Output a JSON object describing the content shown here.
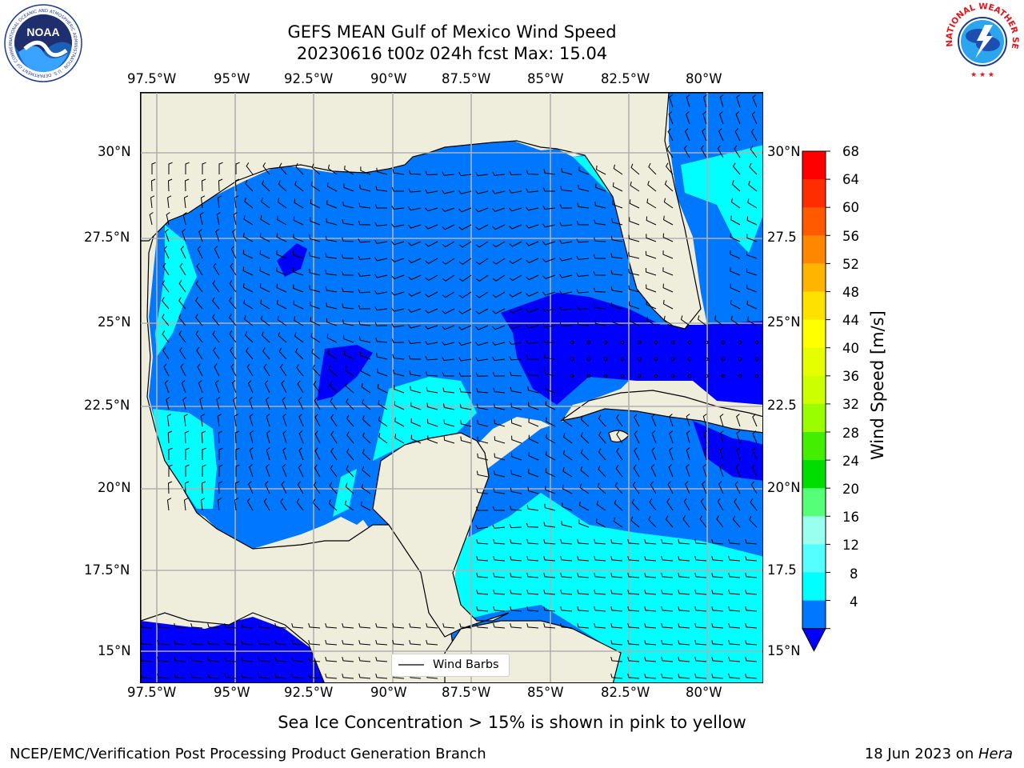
{
  "header": {
    "title_line1": "GEFS MEAN Gulf of Mexico Wind Speed",
    "title_line2": "20230616 t00z 024h fcst   Max: 15.04"
  },
  "logos": {
    "noaa_text": "NOAA",
    "noaa_ring_text": "NATIONAL OCEANIC AND ATMOSPHERIC ADMINISTRATION · U.S. DEPARTMENT OF COMMERCE",
    "nws_ring_text": "NATIONAL WEATHER SERVICE"
  },
  "axes": {
    "lon_labels": [
      "97.5°W",
      "95°W",
      "92.5°W",
      "90°W",
      "87.5°W",
      "85°W",
      "82.5°W",
      "80°W"
    ],
    "lat_labels_left": [
      "30°N",
      "27.5°N",
      "25°N",
      "22.5°N",
      "20°N",
      "17.5°N",
      "15°N"
    ],
    "lat_labels_right": [
      "30°N",
      "27.5",
      "25°N",
      "22.5",
      "20°N",
      "17.5",
      "15°N"
    ]
  },
  "colorbar": {
    "title": "Wind Speed [m/s]",
    "levels": [
      "68",
      "64",
      "60",
      "56",
      "52",
      "48",
      "44",
      "40",
      "36",
      "32",
      "28",
      "24",
      "20",
      "16",
      "12",
      "8",
      "4"
    ],
    "colors": [
      "#ff0000",
      "#ff2d00",
      "#ff5a00",
      "#ff8700",
      "#ffb400",
      "#ffe100",
      "#ffff00",
      "#e6ff00",
      "#ccff00",
      "#99ff00",
      "#44ee00",
      "#00dd00",
      "#55ff77",
      "#99ffee",
      "#55ffff",
      "#00ffff",
      "#0077ff"
    ],
    "under_color": "#0000ff"
  },
  "map_colors": {
    "land": "#efeddc",
    "water_4_8": "#0077ff",
    "water_under_4": "#0000ff",
    "water_8_12": "#00ffff",
    "water_12_16": "#55ffff",
    "grid": "#b0b0b0"
  },
  "legend": {
    "label": "Wind Barbs"
  },
  "footer": {
    "note": "Sea Ice Concentration > 15% is shown in pink to yellow",
    "branch": "NCEP/EMC/Verification Post Processing Product Generation Branch",
    "date_text": "18 Jun 2023 on ",
    "host": "Hera"
  }
}
